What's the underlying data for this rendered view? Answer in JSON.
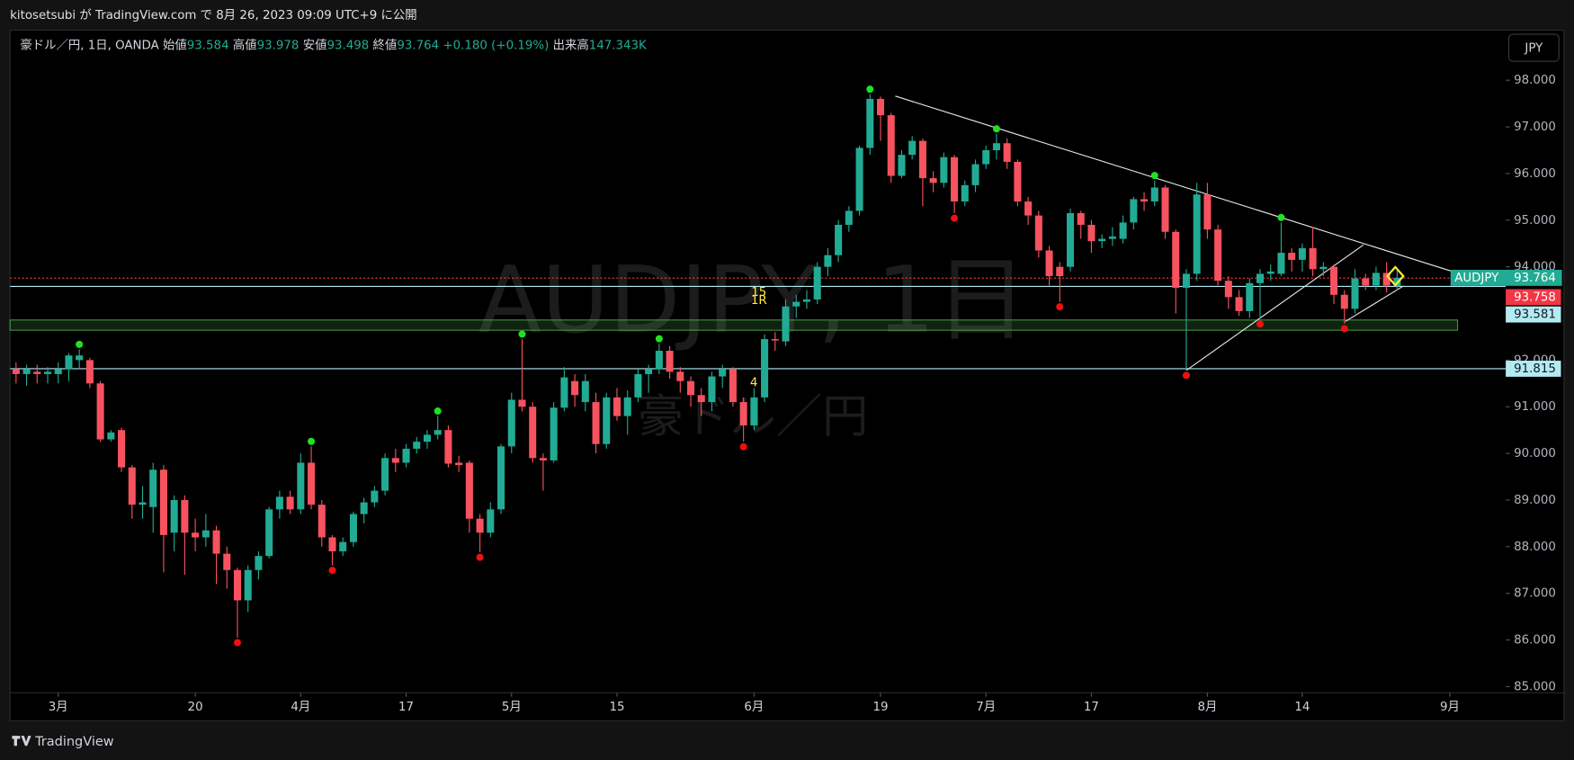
{
  "header": "kitosetsubi が TradingView.com で 8月 26, 2023 09:09 UTC+9 に公開",
  "footer": "TradingView",
  "currency_button": "JPY",
  "legend": {
    "symbol_line": "豪ドル／円, 1日, OANDA",
    "open_label": "始値",
    "high_label": "高値",
    "low_label": "安値",
    "close_label": "終値",
    "change": {
      "value": 0.18,
      "label": "+0.180"
    },
    "change_pct": {
      "value": 0.19,
      "label": "(+0.19%)"
    },
    "volume_label": "出来高",
    "volume": {
      "value": 147343,
      "label": "147.343K"
    }
  },
  "chart_data": {
    "type": "candlestick",
    "symbol": "AUDJPY",
    "watermark": {
      "title": "AUDJPY, 1日",
      "subtitle": "豪ドル／円"
    },
    "up_color": "#22ab94",
    "down_color": "#f7525f",
    "pivot_high_color": "#22e022",
    "pivot_low_color": "#f01010",
    "open": [
      91.8,
      91.7,
      91.75,
      91.7,
      91.7,
      91.8,
      92.0,
      92.0,
      91.5,
      90.3,
      90.5,
      89.7,
      88.9,
      88.85,
      89.65,
      88.3,
      89.0,
      88.3,
      88.2,
      88.35,
      87.85,
      87.5,
      86.85,
      87.5,
      87.8,
      88.8,
      89.07,
      88.8,
      89.8,
      88.9,
      88.2,
      87.9,
      88.1,
      88.7,
      88.95,
      89.2,
      89.9,
      89.8,
      90.1,
      90.25,
      90.4,
      90.5,
      89.8,
      89.8,
      88.6,
      88.3,
      88.8,
      90.15,
      91.15,
      91.0,
      89.9,
      89.85,
      90.98,
      91.55,
      91.1,
      91.1,
      90.2,
      91.2,
      90.8,
      91.2,
      91.7,
      91.8,
      92.2,
      91.75,
      91.55,
      91.25,
      91.1,
      91.65,
      91.8,
      91.1,
      90.6,
      91.2,
      92.45,
      92.4,
      93.15,
      93.25,
      93.3,
      94.0,
      94.25,
      94.9,
      95.2,
      96.55,
      97.6,
      97.25,
      95.95,
      96.4,
      96.7,
      95.9,
      95.8,
      96.35,
      95.4,
      95.75,
      96.2,
      96.5,
      96.65,
      96.25,
      95.4,
      95.1,
      94.35,
      94.0,
      94.0,
      95.15,
      94.9,
      94.55,
      94.6,
      94.6,
      94.95,
      95.45,
      95.4,
      95.7,
      94.75,
      93.55,
      93.85,
      95.55,
      94.8,
      93.7,
      93.35,
      93.05,
      93.65,
      93.85,
      93.85,
      94.3,
      94.15,
      94.4,
      93.95,
      94.0,
      93.4,
      93.1,
      93.75,
      93.6,
      93.87,
      93.584
    ],
    "high": [
      91.95,
      91.9,
      91.9,
      91.85,
      91.95,
      92.15,
      92.23,
      92.05,
      91.55,
      90.5,
      90.55,
      89.75,
      89.3,
      89.8,
      89.75,
      89.1,
      89.1,
      88.6,
      88.7,
      88.45,
      88.0,
      87.55,
      87.6,
      87.9,
      88.85,
      89.2,
      89.2,
      90.0,
      90.15,
      89.0,
      88.25,
      88.2,
      88.75,
      89.05,
      89.3,
      90.0,
      90.1,
      90.2,
      90.35,
      90.5,
      90.8,
      90.6,
      89.95,
      89.85,
      88.7,
      88.95,
      90.2,
      91.3,
      92.45,
      91.1,
      90.0,
      91.1,
      91.85,
      91.7,
      91.7,
      91.3,
      91.3,
      91.4,
      91.35,
      91.8,
      91.9,
      92.35,
      92.3,
      91.85,
      91.65,
      91.4,
      91.75,
      91.9,
      91.85,
      91.2,
      91.4,
      92.55,
      92.6,
      93.3,
      93.4,
      93.5,
      94.1,
      94.4,
      95.0,
      95.3,
      96.6,
      97.7,
      97.65,
      97.3,
      96.5,
      96.8,
      96.75,
      96.05,
      96.45,
      96.4,
      95.85,
      96.3,
      96.6,
      96.85,
      96.75,
      96.3,
      95.5,
      95.2,
      94.45,
      94.1,
      95.25,
      95.2,
      95.0,
      94.7,
      94.85,
      95.1,
      95.5,
      95.6,
      95.85,
      95.75,
      94.8,
      93.95,
      95.8,
      95.8,
      94.9,
      93.8,
      93.5,
      93.75,
      93.95,
      94.05,
      94.95,
      94.4,
      94.5,
      94.85,
      94.1,
      94.05,
      93.5,
      93.95,
      93.85,
      94.0,
      94.1,
      93.978
    ],
    "low": [
      91.5,
      91.45,
      91.5,
      91.5,
      91.5,
      91.55,
      91.8,
      91.4,
      90.25,
      90.25,
      89.6,
      88.6,
      88.6,
      88.3,
      87.45,
      87.9,
      87.4,
      87.9,
      88.0,
      87.2,
      87.1,
      86.05,
      86.6,
      87.3,
      87.75,
      88.6,
      88.7,
      88.7,
      88.8,
      88.0,
      87.6,
      87.8,
      88.0,
      88.5,
      88.85,
      89.1,
      89.6,
      89.7,
      90.0,
      90.1,
      90.3,
      89.7,
      89.6,
      88.3,
      87.88,
      88.2,
      88.7,
      90.0,
      90.9,
      89.8,
      89.2,
      89.8,
      90.9,
      91.0,
      90.9,
      90.0,
      90.1,
      90.7,
      90.4,
      91.1,
      91.3,
      91.7,
      91.6,
      91.3,
      91.0,
      90.8,
      90.9,
      91.4,
      91.0,
      90.25,
      90.5,
      91.1,
      92.2,
      92.3,
      92.9,
      93.1,
      93.2,
      93.8,
      94.1,
      94.75,
      95.1,
      96.4,
      96.7,
      95.8,
      95.9,
      96.3,
      95.3,
      95.6,
      95.7,
      95.15,
      95.3,
      95.6,
      96.1,
      96.3,
      96.1,
      95.3,
      94.9,
      94.2,
      93.6,
      93.25,
      93.9,
      94.6,
      94.3,
      94.4,
      94.45,
      94.5,
      94.8,
      95.2,
      95.3,
      94.6,
      93.0,
      91.78,
      93.7,
      94.6,
      93.6,
      93.1,
      92.95,
      92.9,
      92.88,
      93.7,
      93.8,
      93.9,
      93.9,
      93.8,
      93.8,
      93.2,
      92.78,
      93.0,
      93.5,
      93.5,
      93.45,
      93.498
    ],
    "close": [
      91.7,
      91.8,
      91.7,
      91.75,
      91.8,
      92.1,
      92.1,
      91.5,
      90.3,
      90.45,
      89.7,
      88.9,
      88.95,
      89.65,
      88.25,
      89.0,
      88.3,
      88.2,
      88.35,
      87.85,
      87.5,
      86.85,
      87.5,
      87.8,
      88.8,
      89.07,
      88.8,
      89.8,
      88.9,
      88.2,
      87.9,
      88.1,
      88.7,
      88.95,
      89.2,
      89.9,
      89.8,
      90.1,
      90.25,
      90.4,
      90.5,
      89.78,
      89.75,
      88.6,
      88.3,
      88.8,
      90.15,
      91.15,
      91.0,
      89.9,
      89.85,
      90.98,
      91.63,
      91.25,
      91.55,
      90.2,
      91.2,
      90.8,
      91.2,
      91.7,
      91.8,
      92.2,
      91.75,
      91.55,
      91.25,
      91.1,
      91.65,
      91.8,
      91.1,
      90.6,
      91.2,
      92.45,
      92.42,
      93.15,
      93.25,
      93.3,
      94.0,
      94.25,
      94.9,
      95.2,
      96.55,
      97.6,
      97.25,
      95.95,
      96.4,
      96.7,
      95.9,
      95.8,
      96.35,
      95.4,
      95.75,
      96.2,
      96.5,
      96.65,
      96.25,
      95.4,
      95.1,
      94.35,
      93.8,
      93.8,
      95.15,
      94.9,
      94.55,
      94.6,
      94.65,
      94.95,
      95.45,
      95.4,
      95.7,
      94.75,
      93.55,
      93.85,
      95.55,
      94.8,
      93.7,
      93.35,
      93.05,
      93.65,
      93.85,
      93.9,
      94.3,
      94.15,
      94.4,
      93.95,
      94.0,
      93.4,
      93.1,
      93.75,
      93.6,
      93.87,
      93.6,
      93.764
    ],
    "pivot_highs": [
      6,
      28,
      40,
      48,
      61,
      81,
      93,
      108,
      120
    ],
    "pivot_lows": [
      21,
      30,
      44,
      69,
      89,
      99,
      111,
      118,
      126
    ],
    "hlines": [
      {
        "value": 93.758,
        "color": "#f23645",
        "dashed": true
      },
      {
        "value": 93.581,
        "color": "#b2ebf2",
        "dashed": false
      },
      {
        "value": 91.815,
        "color": "#b2ebf2",
        "dashed": false
      }
    ],
    "zone": [
      92.64,
      92.86
    ],
    "zone_color": "#4caf50",
    "trend_lines": [
      {
        "x": [
          83.4,
          136.1
        ],
        "y": [
          97.66,
          93.91
        ]
      },
      {
        "x": [
          111,
          127.8
        ],
        "y": [
          91.78,
          94.47
        ]
      },
      {
        "x": [
          126.1,
          131.6
        ],
        "y": [
          92.83,
          93.59
        ]
      }
    ],
    "annotations": [
      "15",
      "1R",
      "4"
    ],
    "annotation_color": "#ffeb3b",
    "xlim": [
      -0.57,
      141.3
    ],
    "xticks": [
      {
        "value": 4,
        "label": "3月"
      },
      {
        "value": 17,
        "label": "20"
      },
      {
        "value": 27,
        "label": "4月"
      },
      {
        "value": 37,
        "label": "17"
      },
      {
        "value": 47,
        "label": "5月"
      },
      {
        "value": 57,
        "label": "15"
      },
      {
        "value": 70,
        "label": "6月"
      },
      {
        "value": 82,
        "label": "19"
      },
      {
        "value": 92,
        "label": "7月"
      },
      {
        "value": 102,
        "label": "17"
      },
      {
        "value": 113,
        "label": "8月"
      },
      {
        "value": 122,
        "label": "14"
      },
      {
        "value": 136,
        "label": "9月"
      }
    ],
    "ylim": [
      84.87,
      99.03
    ],
    "yticks": [
      {
        "value": 85,
        "label": "85.000"
      },
      {
        "value": 86,
        "label": "86.000"
      },
      {
        "value": 87,
        "label": "87.000"
      },
      {
        "value": 88,
        "label": "88.000"
      },
      {
        "value": 89,
        "label": "89.000"
      },
      {
        "value": 90,
        "label": "90.000"
      },
      {
        "value": 91,
        "label": "91.000"
      },
      {
        "value": 92,
        "label": "92.000"
      },
      {
        "value": 93,
        "label": "93.000"
      },
      {
        "value": 94,
        "label": "94.000"
      },
      {
        "value": 95,
        "label": "95.000"
      },
      {
        "value": 96,
        "label": "96.000"
      },
      {
        "value": 97,
        "label": "97.000"
      },
      {
        "value": 98,
        "label": "98.000"
      }
    ],
    "grid": false
  }
}
